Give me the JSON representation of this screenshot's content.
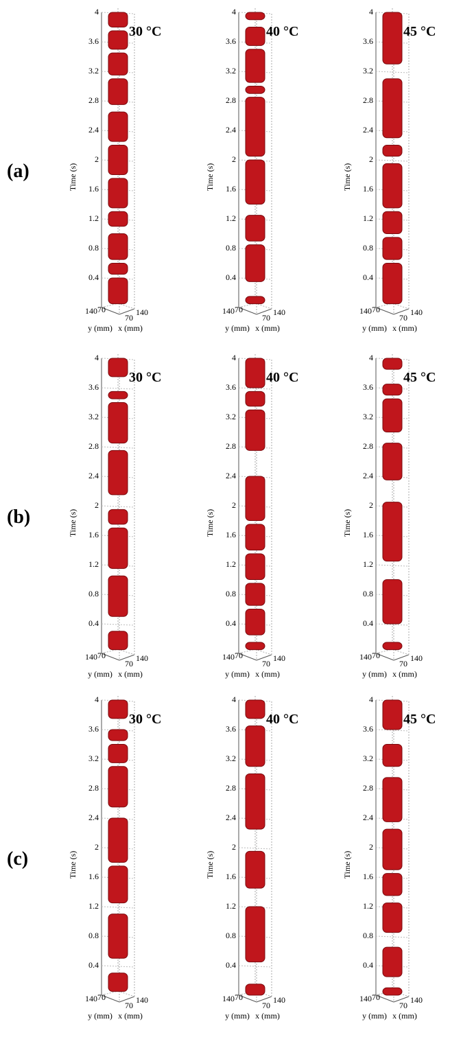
{
  "row_labels": [
    "(a)",
    "(b)",
    "(c)"
  ],
  "chart_data": [
    {
      "type": "volume",
      "title": "30 °C",
      "zlabel": "Time (s)",
      "xlabel": "x (mm)",
      "ylabel": "y (mm)",
      "zlim": [
        0,
        4
      ],
      "zticks": [
        0.4,
        0.8,
        1.2,
        1.6,
        2,
        2.4,
        2.8,
        3.2,
        3.6,
        4
      ],
      "xticks": [
        70,
        140
      ],
      "yticks": [
        140,
        70
      ],
      "color": "#c0161c",
      "segments": [
        [
          0.05,
          0.4
        ],
        [
          0.45,
          0.6
        ],
        [
          0.65,
          1.0
        ],
        [
          1.1,
          1.3
        ],
        [
          1.35,
          1.75
        ],
        [
          1.8,
          2.2
        ],
        [
          2.25,
          2.65
        ],
        [
          2.75,
          3.1
        ],
        [
          3.15,
          3.45
        ],
        [
          3.5,
          3.75
        ],
        [
          3.8,
          4.0
        ]
      ]
    },
    {
      "type": "volume",
      "title": "40 °C",
      "zlabel": "Time (s)",
      "xlabel": "x (mm)",
      "ylabel": "y (mm)",
      "zlim": [
        0,
        4
      ],
      "zticks": [
        0.4,
        0.8,
        1.2,
        1.6,
        2,
        2.4,
        2.8,
        3.2,
        3.6,
        4
      ],
      "xticks": [
        70,
        140
      ],
      "yticks": [
        140,
        70
      ],
      "color": "#c0161c",
      "segments": [
        [
          0.05,
          0.15
        ],
        [
          0.35,
          0.85
        ],
        [
          0.9,
          1.25
        ],
        [
          1.4,
          2.0
        ],
        [
          2.05,
          2.85
        ],
        [
          2.9,
          3.0
        ],
        [
          3.05,
          3.5
        ],
        [
          3.55,
          3.8
        ],
        [
          3.9,
          4.0
        ]
      ]
    },
    {
      "type": "volume",
      "title": "45 °C",
      "zlabel": "Time (s)",
      "xlabel": "x (mm)",
      "ylabel": "y (mm)",
      "zlim": [
        0,
        4
      ],
      "zticks": [
        0.4,
        0.8,
        1.2,
        1.6,
        2,
        2.4,
        2.8,
        3.2,
        3.6,
        4
      ],
      "xticks": [
        70,
        140
      ],
      "yticks": [
        140,
        70
      ],
      "color": "#c0161c",
      "segments": [
        [
          0.05,
          0.6
        ],
        [
          0.65,
          0.95
        ],
        [
          1.0,
          1.3
        ],
        [
          1.35,
          1.95
        ],
        [
          2.05,
          2.2
        ],
        [
          2.3,
          3.1
        ],
        [
          3.3,
          4.0
        ]
      ]
    },
    {
      "type": "volume",
      "title": "30 °C",
      "zlabel": "Time (s)",
      "xlabel": "x (mm)",
      "ylabel": "y (mm)",
      "zlim": [
        0,
        4
      ],
      "zticks": [
        0.4,
        0.8,
        1.2,
        1.6,
        2,
        2.4,
        2.8,
        3.2,
        3.6,
        4
      ],
      "xticks": [
        70,
        140
      ],
      "yticks": [
        140,
        70
      ],
      "color": "#c0161c",
      "segments": [
        [
          0.05,
          0.3
        ],
        [
          0.5,
          1.05
        ],
        [
          1.15,
          1.7
        ],
        [
          1.75,
          1.95
        ],
        [
          2.15,
          2.75
        ],
        [
          2.85,
          3.4
        ],
        [
          3.45,
          3.55
        ],
        [
          3.75,
          4.0
        ]
      ]
    },
    {
      "type": "volume",
      "title": "40 °C",
      "zlabel": "Time (s)",
      "xlabel": "x (mm)",
      "ylabel": "y (mm)",
      "zlim": [
        0,
        4
      ],
      "zticks": [
        0.4,
        0.8,
        1.2,
        1.6,
        2,
        2.4,
        2.8,
        3.2,
        3.6,
        4
      ],
      "xticks": [
        70,
        140
      ],
      "yticks": [
        140,
        70
      ],
      "color": "#c0161c",
      "segments": [
        [
          0.05,
          0.15
        ],
        [
          0.25,
          0.6
        ],
        [
          0.65,
          0.95
        ],
        [
          1.0,
          1.35
        ],
        [
          1.4,
          1.75
        ],
        [
          1.8,
          2.4
        ],
        [
          2.75,
          3.3
        ],
        [
          3.35,
          3.55
        ],
        [
          3.6,
          4.0
        ]
      ]
    },
    {
      "type": "volume",
      "title": "45 °C",
      "zlabel": "Time (s)",
      "xlabel": "x (mm)",
      "ylabel": "y (mm)",
      "zlim": [
        0,
        4
      ],
      "zticks": [
        0.4,
        0.8,
        1.2,
        1.6,
        2,
        2.4,
        2.8,
        3.2,
        3.6,
        4
      ],
      "xticks": [
        70,
        140
      ],
      "yticks": [
        140,
        70
      ],
      "color": "#c0161c",
      "segments": [
        [
          0.05,
          0.15
        ],
        [
          0.4,
          1.0
        ],
        [
          1.25,
          2.05
        ],
        [
          2.35,
          2.85
        ],
        [
          3.0,
          3.45
        ],
        [
          3.5,
          3.65
        ],
        [
          3.85,
          4.0
        ]
      ]
    },
    {
      "type": "volume",
      "title": "30 °C",
      "zlabel": "Time (s)",
      "xlabel": "x (mm)",
      "ylabel": "y (mm)",
      "zlim": [
        0,
        4
      ],
      "zticks": [
        0.4,
        0.8,
        1.2,
        1.6,
        2,
        2.4,
        2.8,
        3.2,
        3.6,
        4
      ],
      "xticks": [
        70,
        140
      ],
      "yticks": [
        140,
        70
      ],
      "color": "#c0161c",
      "segments": [
        [
          0.05,
          0.3
        ],
        [
          0.5,
          1.1
        ],
        [
          1.25,
          1.75
        ],
        [
          1.8,
          2.4
        ],
        [
          2.55,
          3.1
        ],
        [
          3.15,
          3.4
        ],
        [
          3.45,
          3.6
        ],
        [
          3.75,
          4.0
        ]
      ]
    },
    {
      "type": "volume",
      "title": "40 °C",
      "zlabel": "Time (s)",
      "xlabel": "x (mm)",
      "ylabel": "y (mm)",
      "zlim": [
        0,
        4
      ],
      "zticks": [
        0.4,
        0.8,
        1.2,
        1.6,
        2,
        2.4,
        2.8,
        3.2,
        3.6,
        4
      ],
      "xticks": [
        70,
        140
      ],
      "yticks": [
        140,
        70
      ],
      "color": "#c0161c",
      "segments": [
        [
          0.0,
          0.15
        ],
        [
          0.45,
          1.2
        ],
        [
          1.45,
          1.95
        ],
        [
          2.25,
          3.0
        ],
        [
          3.1,
          3.65
        ],
        [
          3.75,
          4.0
        ]
      ]
    },
    {
      "type": "volume",
      "title": "45 °C",
      "zlabel": "Time (s)",
      "xlabel": "x (mm)",
      "ylabel": "y (mm)",
      "zlim": [
        0,
        4
      ],
      "zticks": [
        0.4,
        0.8,
        1.2,
        1.6,
        2,
        2.4,
        2.8,
        3.2,
        3.6,
        4
      ],
      "xticks": [
        70,
        140
      ],
      "yticks": [
        140,
        70
      ],
      "color": "#c0161c",
      "segments": [
        [
          0.0,
          0.1
        ],
        [
          0.25,
          0.65
        ],
        [
          0.85,
          1.25
        ],
        [
          1.35,
          1.65
        ],
        [
          1.7,
          2.25
        ],
        [
          2.35,
          2.95
        ],
        [
          3.1,
          3.4
        ],
        [
          3.6,
          4.0
        ]
      ]
    }
  ]
}
